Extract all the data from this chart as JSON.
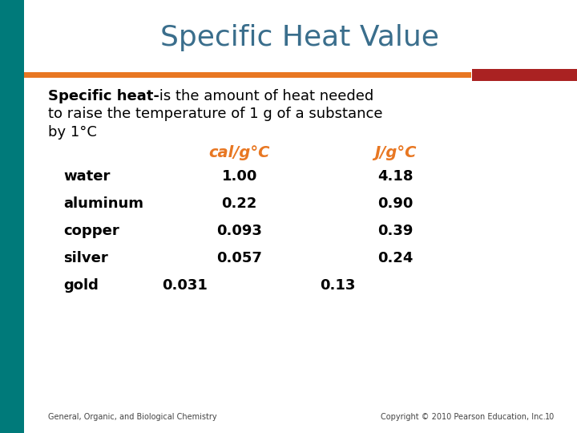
{
  "title": "Specific Heat Value",
  "title_color": "#3A6E8C",
  "title_fontsize": 26,
  "bg_color": "#FFFFFF",
  "left_bar_color": "#007A7A",
  "orange_line_color": "#E87722",
  "red_bar_color": "#AA2222",
  "col_header_1": "cal/g°C",
  "col_header_2": "J/g°C",
  "header_color": "#E87722",
  "rows": [
    [
      "water",
      "1.00",
      "4.18"
    ],
    [
      "aluminum",
      "0.22",
      "0.90"
    ],
    [
      "copper",
      "0.093",
      "0.39"
    ],
    [
      "silver",
      "0.057",
      "0.24"
    ],
    [
      "gold",
      "0.031",
      "0.13"
    ]
  ],
  "footer_left": "General, Organic, and Biological Chemistry",
  "footer_right": "Copyright © 2010 Pearson Education, Inc.",
  "footer_page": "10",
  "text_color": "#000000",
  "body_fontsize": 13,
  "table_fontsize": 13
}
